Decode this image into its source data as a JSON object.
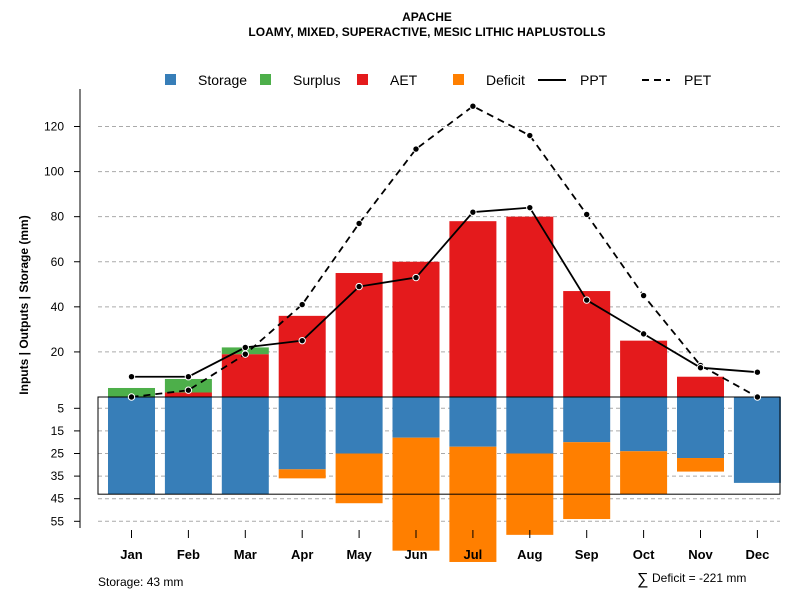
{
  "chart_data": {
    "type": "bar",
    "title": "APACHE",
    "subtitle": "LOAMY, MIXED, SUPERACTIVE, MESIC LITHIC HAPLUSTOLLS",
    "ylabel": "Inputs | Outputs | Storage    (mm)",
    "categories": [
      "Jan",
      "Feb",
      "Mar",
      "Apr",
      "May",
      "Jun",
      "Jul",
      "Aug",
      "Sep",
      "Oct",
      "Nov",
      "Dec"
    ],
    "upper_ylim": [
      0,
      130
    ],
    "lower_ylim": [
      0,
      55
    ],
    "upper_ticks": [
      "20",
      "40",
      "60",
      "80",
      "100",
      "120"
    ],
    "lower_ticks": [
      "5",
      "15",
      "25",
      "35",
      "45",
      "55"
    ],
    "legend": [
      {
        "label": "Storage",
        "kind": "box",
        "color": "#377EB8"
      },
      {
        "label": "Surplus",
        "kind": "box",
        "color": "#4DAF4A"
      },
      {
        "label": "AET",
        "kind": "box",
        "color": "#E41A1C"
      },
      {
        "label": "Deficit",
        "kind": "box",
        "color": "#FF7F00"
      },
      {
        "label": "PPT",
        "kind": "solid-line",
        "color": "#000000"
      },
      {
        "label": "PET",
        "kind": "dashed-line",
        "color": "#000000"
      }
    ],
    "series": [
      {
        "name": "AET",
        "color": "#E41A1C",
        "values": [
          0,
          2,
          19,
          36,
          55,
          60,
          78,
          80,
          47,
          25,
          9,
          0
        ]
      },
      {
        "name": "Surplus",
        "color": "#4DAF4A",
        "values": [
          4,
          6,
          3,
          0,
          0,
          0,
          0,
          0,
          0,
          0,
          0,
          0
        ]
      },
      {
        "name": "Storage",
        "color": "#377EB8",
        "values": [
          43,
          43,
          43,
          32,
          25,
          18,
          22,
          25,
          20,
          24,
          27,
          38
        ]
      },
      {
        "name": "Deficit",
        "color": "#FF7F00",
        "values": [
          0,
          0,
          0,
          4,
          22,
          50,
          51,
          36,
          34,
          19,
          6,
          0
        ]
      },
      {
        "name": "PPT",
        "color": "#000000",
        "values": [
          9,
          9,
          22,
          25,
          49,
          53,
          82,
          84,
          43,
          28,
          13,
          11
        ]
      },
      {
        "name": "PET",
        "color": "#000000",
        "values": [
          0,
          3,
          19,
          41,
          77,
          110,
          129,
          116,
          81,
          45,
          14,
          0
        ]
      }
    ],
    "storage_note": "Storage: 43 mm",
    "deficit_note": "Deficit = -221 mm",
    "deficit_symbol": "∑"
  }
}
